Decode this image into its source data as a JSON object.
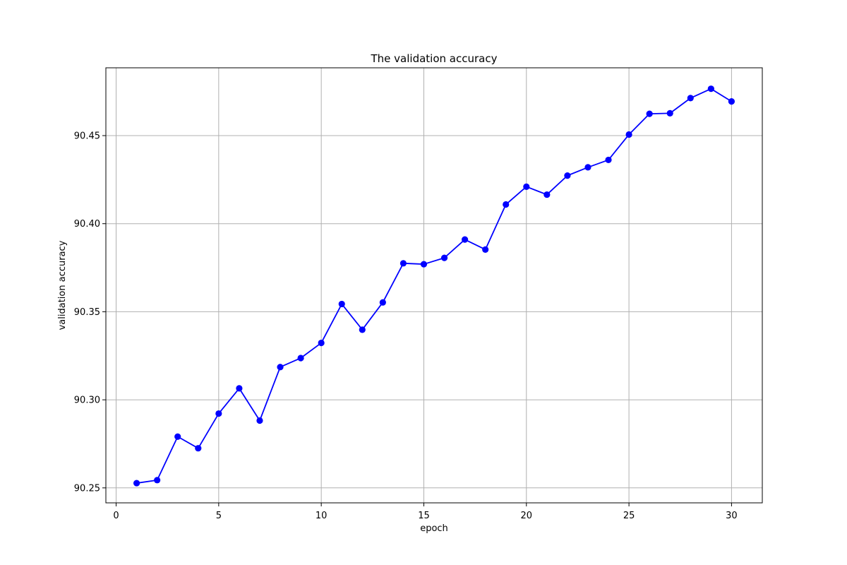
{
  "chart_data": {
    "type": "line",
    "title": "The validation accuracy",
    "xlabel": "epoch",
    "ylabel": "validation accuracy",
    "xlim": [
      -0.5,
      31.5
    ],
    "ylim": [
      90.2415,
      90.4885
    ],
    "grid": true,
    "color": "#0000ff",
    "x_ticks": [
      0,
      5,
      10,
      15,
      20,
      25,
      30
    ],
    "x_tick_labels": [
      "0",
      "5",
      "10",
      "15",
      "20",
      "25",
      "30"
    ],
    "y_ticks": [
      90.25,
      90.3,
      90.35,
      90.4,
      90.45
    ],
    "y_tick_labels": [
      "90.25",
      "90.30",
      "90.35",
      "90.40",
      "90.45"
    ],
    "series": [
      {
        "x": [
          1,
          2,
          3,
          4,
          5,
          6,
          7,
          8,
          9,
          10,
          11,
          12,
          13,
          14,
          15,
          16,
          17,
          18,
          19,
          20,
          21,
          22,
          23,
          24,
          25,
          26,
          27,
          28,
          29,
          30
        ],
        "values": [
          90.2527,
          90.2544,
          90.2791,
          90.2725,
          90.2922,
          90.3065,
          90.2882,
          90.3186,
          90.3237,
          90.3323,
          90.3544,
          90.3398,
          90.3553,
          90.3775,
          90.377,
          90.3806,
          90.391,
          90.3853,
          90.4109,
          90.421,
          90.4165,
          90.4273,
          90.432,
          90.4362,
          90.4506,
          90.4624,
          90.4627,
          90.4713,
          90.4766,
          90.4694
        ]
      }
    ]
  }
}
